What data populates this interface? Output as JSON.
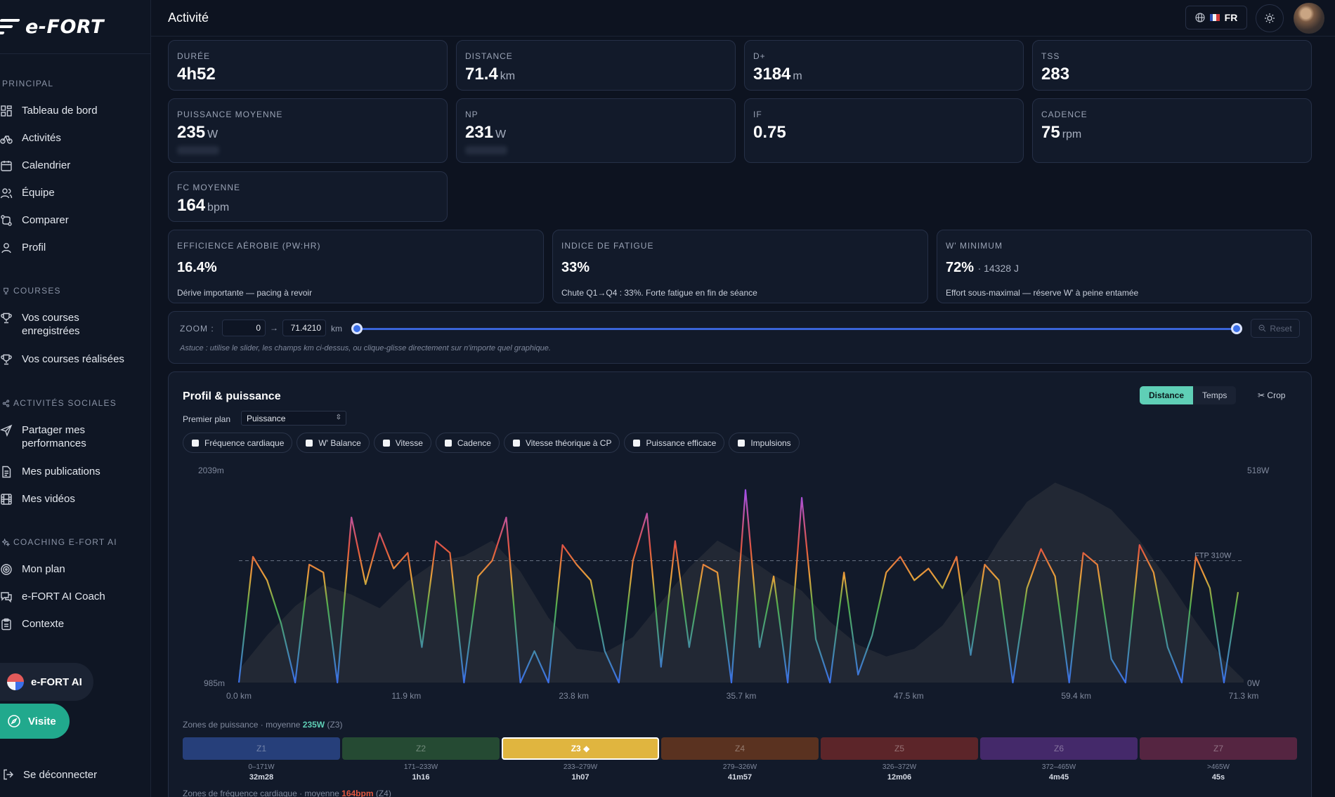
{
  "app": {
    "logo": "e-FORT",
    "page_title": "Activité",
    "lang": "FR"
  },
  "sidebar": {
    "sections": [
      {
        "title": "PRINCIPAL",
        "items": [
          "Tableau de bord",
          "Activités",
          "Calendrier",
          "Équipe",
          "Comparer",
          "Profil"
        ]
      },
      {
        "title": "COURSES",
        "items": [
          "Vos courses enregistrées",
          "Vos courses réalisées"
        ]
      },
      {
        "title": "ACTIVITÉS SOCIALES",
        "items": [
          "Partager mes performances",
          "Mes publications",
          "Mes vidéos"
        ]
      },
      {
        "title": "COACHING E-FORT AI",
        "items": [
          "Mon plan",
          "e-FORT AI Coach",
          "Contexte"
        ]
      }
    ],
    "ai_button": "e-FORT AI",
    "visit_button": "Visite",
    "logout": "Se déconnecter"
  },
  "metrics": [
    {
      "label": "DURÉE",
      "value": "4h52",
      "unit": ""
    },
    {
      "label": "DISTANCE",
      "value": "71.4",
      "unit": "km"
    },
    {
      "label": "D+",
      "value": "3184",
      "unit": "m"
    },
    {
      "label": "TSS",
      "value": "283",
      "unit": ""
    },
    {
      "label": "PUISSANCE MOYENNE",
      "value": "235",
      "unit": "W"
    },
    {
      "label": "NP",
      "value": "231",
      "unit": "W"
    },
    {
      "label": "IF",
      "value": "0.75",
      "unit": ""
    },
    {
      "label": "CADENCE",
      "value": "75",
      "unit": "rpm"
    },
    {
      "label": "FC MOYENNE",
      "value": "164",
      "unit": "bpm"
    }
  ],
  "insights": [
    {
      "label": "EFFICIENCE AÉROBIE (PW:HR)",
      "value": "16.4%",
      "sub": "",
      "desc": "Dérive importante — pacing à revoir"
    },
    {
      "label": "INDICE DE FATIGUE",
      "value": "33%",
      "sub": "",
      "desc": "Chute Q1→Q4 : 33%. Forte fatigue en fin de séance"
    },
    {
      "label": "W' MINIMUM",
      "value": "72%",
      "sub": "· 14328 J",
      "desc": "Effort sous-maximal — réserve W' à peine entamée"
    }
  ],
  "zoom": {
    "label": "ZOOM :",
    "from": "0",
    "to": "71.4210",
    "unit": "km",
    "reset": "Reset",
    "tip": "Astuce : utilise le slider, les champs km ci-dessus, ou clique-glisse directement sur n'importe quel graphique."
  },
  "chart_panel": {
    "title": "Profil & puissance",
    "toggle": [
      "Distance",
      "Temps"
    ],
    "toggle_active": "Distance",
    "crop": "Crop",
    "foreground_label": "Premier plan",
    "foreground_value": "Puissance",
    "overlays": [
      "Fréquence cardiaque",
      "W' Balance",
      "Vitesse",
      "Cadence",
      "Vitesse théorique à CP",
      "Puissance efficace",
      "Impulsions"
    ]
  },
  "chart_data": {
    "type": "line",
    "x_unit": "km",
    "x_ticks": [
      "0.0 km",
      "11.9 km",
      "23.8 km",
      "35.7 km",
      "47.5 km",
      "59.4 km",
      "71.3 km"
    ],
    "xlim": [
      0,
      71.4
    ],
    "left_axis": {
      "top": "2039m",
      "bottom": "985m"
    },
    "right_axis": {
      "top": "518W",
      "bottom": "0W"
    },
    "ylim_power": [
      0,
      518
    ],
    "ftp_label": "FTP 310W",
    "ftp": 310,
    "elevation": {
      "x": [
        0,
        2,
        4,
        6,
        8,
        10,
        12,
        14,
        16,
        18,
        20,
        22,
        24,
        26,
        28,
        30,
        32,
        34,
        36,
        38,
        40,
        42,
        44,
        46,
        48,
        50,
        52,
        54,
        56,
        58,
        60,
        62,
        64,
        66,
        68,
        70,
        71.4
      ],
      "y": [
        1050,
        1230,
        1380,
        1490,
        1440,
        1370,
        1510,
        1610,
        1640,
        1720,
        1560,
        1320,
        1160,
        1140,
        1220,
        1400,
        1580,
        1720,
        1640,
        1540,
        1460,
        1300,
        1180,
        1120,
        1160,
        1280,
        1480,
        1720,
        1920,
        2020,
        1960,
        1880,
        1720,
        1520,
        1300,
        1100,
        1000
      ]
    },
    "power_series": {
      "name": "Puissance",
      "x": [
        0,
        1,
        2,
        3,
        4,
        5,
        6,
        7,
        8,
        9,
        10,
        11,
        12,
        13,
        14,
        15,
        16,
        17,
        18,
        19,
        20,
        21,
        22,
        23,
        24,
        25,
        26,
        27,
        28,
        29,
        30,
        31,
        32,
        33,
        34,
        35,
        36,
        37,
        38,
        39,
        40,
        41,
        42,
        43,
        44,
        45,
        46,
        47,
        48,
        49,
        50,
        51,
        52,
        53,
        54,
        55,
        56,
        57,
        58,
        59,
        60,
        61,
        62,
        63,
        64,
        65,
        66,
        67,
        68,
        69,
        70,
        71
      ],
      "y": [
        0,
        320,
        260,
        150,
        0,
        300,
        280,
        0,
        420,
        250,
        380,
        290,
        330,
        90,
        360,
        330,
        0,
        270,
        310,
        420,
        0,
        80,
        0,
        350,
        300,
        260,
        80,
        0,
        310,
        430,
        40,
        360,
        90,
        300,
        280,
        0,
        490,
        90,
        270,
        0,
        470,
        110,
        0,
        280,
        20,
        120,
        280,
        320,
        260,
        290,
        240,
        320,
        70,
        300,
        260,
        0,
        240,
        340,
        270,
        0,
        330,
        300,
        60,
        0,
        350,
        280,
        90,
        0,
        320,
        240,
        0,
        230
      ]
    },
    "grid": false,
    "legend": "none"
  },
  "power_zones": {
    "label": "Zones de puissance · moyenne",
    "avg": "235W",
    "avg_zone": "(Z3)",
    "zones": [
      {
        "name": "Z1",
        "range": "0–171W",
        "time": "32m28",
        "color": "#263f7a"
      },
      {
        "name": "Z2",
        "range": "171–233W",
        "time": "1h16",
        "color": "#254a33"
      },
      {
        "name": "Z3 ◆",
        "range": "233–279W",
        "time": "1h07",
        "color": "#e0b53f"
      },
      {
        "name": "Z4",
        "range": "279–326W",
        "time": "41m57",
        "color": "#5a3220"
      },
      {
        "name": "Z5",
        "range": "326–372W",
        "time": "12m06",
        "color": "#5c2529"
      },
      {
        "name": "Z6",
        "range": "372–465W",
        "time": "4m45",
        "color": "#44296a"
      },
      {
        "name": "Z7",
        "range": ">465W",
        "time": "45s",
        "color": "#552541"
      }
    ],
    "selected": 2
  },
  "hr_zones": {
    "label": "Zones de fréquence cardiaque · moyenne",
    "avg": "164bpm",
    "avg_zone": "(Z4)"
  },
  "colors": {
    "accent": "#5fcfb6",
    "visit": "#21a98d",
    "bg": "#0d1320",
    "card": "#121a2a"
  }
}
